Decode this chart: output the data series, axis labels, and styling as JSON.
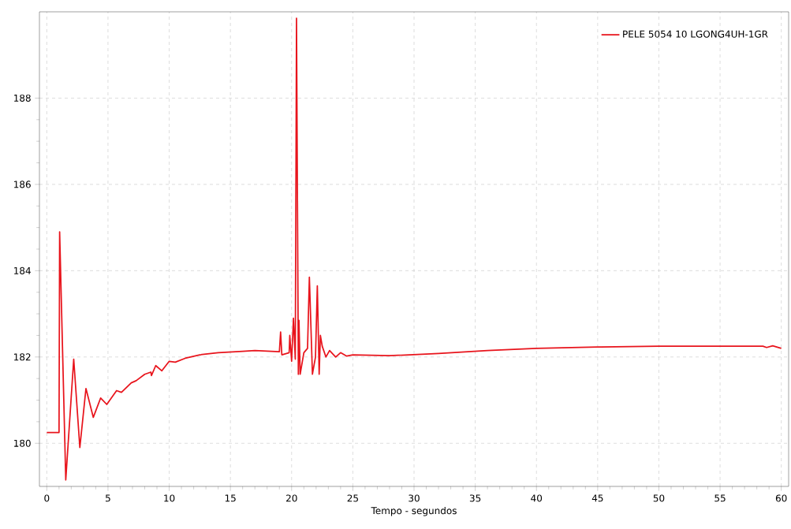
{
  "chart_data": {
    "type": "line",
    "xlabel": "Tempo - segundos",
    "xlim": [
      -0.6,
      60.6
    ],
    "ylim": [
      179,
      190
    ],
    "xticks": [
      0,
      5,
      10,
      15,
      20,
      25,
      30,
      35,
      40,
      45,
      50,
      55,
      60
    ],
    "yticks": [
      180,
      182,
      184,
      186,
      188
    ],
    "grid": true,
    "legend": "top right",
    "marker": "none",
    "line_style": "solid",
    "x": [
      0,
      1.0,
      1.05,
      1.55,
      2.2,
      2.7,
      3.2,
      3.8,
      4.4,
      4.9,
      5.7,
      6.1,
      6.9,
      7.3,
      8.0,
      8.5,
      8.55,
      8.9,
      9.4,
      10,
      10.5,
      11.3,
      12.5,
      14,
      16,
      17,
      19,
      19.1,
      19.2,
      19.8,
      19.85,
      20,
      20.15,
      20.3,
      20.4,
      20.55,
      20.6,
      20.7,
      21,
      21.3,
      21.45,
      21.7,
      21.95,
      22.1,
      22.25,
      22.35,
      22.5,
      22.8,
      23.1,
      23.6,
      24,
      24.5,
      25,
      28,
      32,
      36,
      40,
      45,
      50,
      55,
      58.5,
      58.8,
      59.3,
      60
    ],
    "series": [
      {
        "name": "PELE     5054 10 LGONG4UH-1GR",
        "color": "#e8141c",
        "values": [
          180.25,
          180.25,
          184.9,
          179.15,
          181.95,
          179.9,
          181.27,
          180.6,
          181.05,
          180.9,
          181.22,
          181.18,
          181.4,
          181.45,
          181.6,
          181.65,
          181.57,
          181.8,
          181.68,
          181.9,
          181.88,
          181.97,
          182.05,
          182.1,
          182.13,
          182.15,
          182.12,
          182.58,
          182.05,
          182.1,
          182.5,
          181.9,
          182.9,
          181.95,
          189.85,
          181.6,
          182.85,
          181.6,
          182.1,
          182.2,
          183.85,
          181.6,
          182.0,
          183.65,
          181.6,
          182.5,
          182.25,
          182.0,
          182.15,
          182.0,
          182.1,
          182.02,
          182.05,
          182.03,
          182.08,
          182.15,
          182.2,
          182.23,
          182.25,
          182.25,
          182.25,
          182.22,
          182.26,
          182.2
        ]
      }
    ]
  }
}
